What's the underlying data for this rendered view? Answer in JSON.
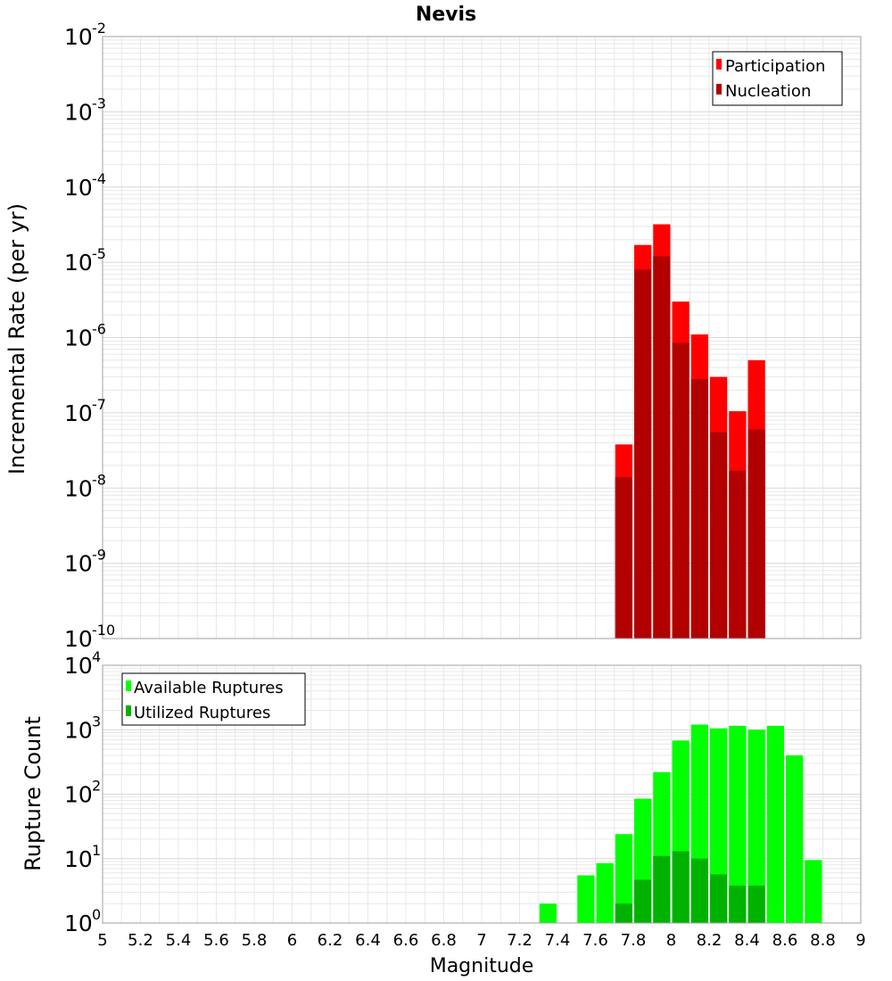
{
  "colors": {
    "participation": "#ff0000",
    "nucleation": "#b20000",
    "available": "#00ff00",
    "utilized": "#00b200",
    "grid": "#e8e8e8",
    "frame": "#a0a0a0"
  },
  "chart_data": [
    {
      "type": "bar",
      "scale": "log",
      "title": "Nevis",
      "ylabel": "Incremental Rate (per yr)",
      "xlabel": "",
      "xlim": [
        5,
        9
      ],
      "ylim_exp": [
        -10,
        -2
      ],
      "bin_width": 0.1,
      "ytick_exponents": [
        "-10",
        "-9",
        "-8",
        "-7",
        "-6",
        "-5",
        "-4",
        "-3",
        "-2"
      ],
      "legend": {
        "position": "top-right",
        "entries": [
          "Participation",
          "Nucleation"
        ]
      },
      "series": [
        {
          "name": "Participation",
          "color_key": "participation",
          "points": [
            {
              "x": 7.75,
              "y": 3.8e-08
            },
            {
              "x": 7.85,
              "y": 1.7e-05
            },
            {
              "x": 7.95,
              "y": 3.2e-05
            },
            {
              "x": 8.05,
              "y": 3e-06
            },
            {
              "x": 8.15,
              "y": 1.1e-06
            },
            {
              "x": 8.25,
              "y": 3e-07
            },
            {
              "x": 8.35,
              "y": 1.05e-07
            },
            {
              "x": 8.45,
              "y": 5e-07
            }
          ]
        },
        {
          "name": "Nucleation",
          "color_key": "nucleation",
          "points": [
            {
              "x": 7.75,
              "y": 1.4e-08
            },
            {
              "x": 7.85,
              "y": 8e-06
            },
            {
              "x": 7.95,
              "y": 1.2e-05
            },
            {
              "x": 8.05,
              "y": 8.5e-07
            },
            {
              "x": 8.15,
              "y": 2.8e-07
            },
            {
              "x": 8.25,
              "y": 5.5e-08
            },
            {
              "x": 8.35,
              "y": 1.7e-08
            },
            {
              "x": 8.45,
              "y": 6e-08
            }
          ]
        }
      ]
    },
    {
      "type": "bar",
      "scale": "log",
      "ylabel": "Rupture Count",
      "xlabel": "Magnitude",
      "xlim": [
        5,
        9
      ],
      "ylim_exp": [
        0,
        4
      ],
      "bin_width": 0.1,
      "ytick_exponents": [
        "0",
        "1",
        "2",
        "3",
        "4"
      ],
      "xticks": [
        "5",
        "5.2",
        "5.4",
        "5.6",
        "5.8",
        "6",
        "6.2",
        "6.4",
        "6.6",
        "6.8",
        "7",
        "7.2",
        "7.4",
        "7.6",
        "7.8",
        "8",
        "8.2",
        "8.4",
        "8.6",
        "8.8",
        "9"
      ],
      "legend": {
        "position": "top-left",
        "entries": [
          "Available Ruptures",
          "Utilized Ruptures"
        ]
      },
      "series": [
        {
          "name": "Available Ruptures",
          "color_key": "available",
          "points": [
            {
              "x": 7.35,
              "y": 2
            },
            {
              "x": 7.55,
              "y": 5.5
            },
            {
              "x": 7.65,
              "y": 8.5
            },
            {
              "x": 7.75,
              "y": 24
            },
            {
              "x": 7.85,
              "y": 85
            },
            {
              "x": 7.95,
              "y": 220
            },
            {
              "x": 8.05,
              "y": 680
            },
            {
              "x": 8.15,
              "y": 1200
            },
            {
              "x": 8.25,
              "y": 1050
            },
            {
              "x": 8.35,
              "y": 1150
            },
            {
              "x": 8.45,
              "y": 1000
            },
            {
              "x": 8.55,
              "y": 1150
            },
            {
              "x": 8.65,
              "y": 400
            },
            {
              "x": 8.75,
              "y": 9.5
            }
          ]
        },
        {
          "name": "Utilized Ruptures",
          "color_key": "utilized",
          "points": [
            {
              "x": 7.75,
              "y": 2
            },
            {
              "x": 7.85,
              "y": 4.7
            },
            {
              "x": 7.95,
              "y": 11
            },
            {
              "x": 8.05,
              "y": 13
            },
            {
              "x": 8.15,
              "y": 10
            },
            {
              "x": 8.25,
              "y": 5.7
            },
            {
              "x": 8.35,
              "y": 3.8
            },
            {
              "x": 8.45,
              "y": 3.8
            }
          ]
        }
      ]
    }
  ]
}
